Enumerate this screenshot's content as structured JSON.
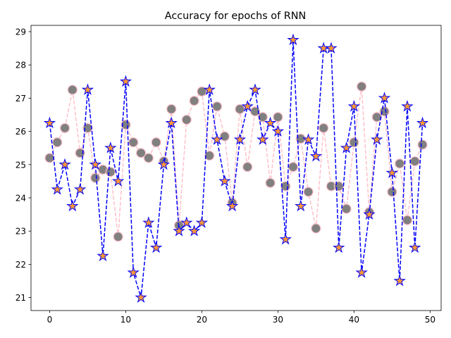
{
  "chart_data": {
    "type": "line",
    "title": "Accuracy for epochs of RNN",
    "xlabel": "",
    "ylabel": "",
    "xlim": [
      -2.45,
      51.45
    ],
    "ylim": [
      20.61,
      29.19
    ],
    "xticks": [
      0,
      10,
      20,
      30,
      40,
      50
    ],
    "yticks": [
      21,
      22,
      23,
      24,
      25,
      26,
      27,
      28,
      29
    ],
    "grid": false,
    "legend": "none",
    "x": [
      0,
      1,
      2,
      3,
      4,
      5,
      6,
      7,
      8,
      9,
      10,
      11,
      12,
      13,
      14,
      15,
      16,
      17,
      18,
      19,
      20,
      21,
      22,
      23,
      24,
      25,
      26,
      27,
      28,
      29,
      30,
      31,
      32,
      33,
      34,
      35,
      36,
      37,
      38,
      39,
      40,
      41,
      42,
      43,
      44,
      45,
      46,
      47,
      48,
      49
    ],
    "series": [
      {
        "style": "dashed",
        "line_color": "#0000ff",
        "marker": "star",
        "marker_face": "#ff9933",
        "marker_edge": "#0000ff",
        "values": [
          26.25,
          24.25,
          25.0,
          23.75,
          24.25,
          27.25,
          25.0,
          22.25,
          25.5,
          24.5,
          27.5,
          21.75,
          21.0,
          23.25,
          22.5,
          25.0,
          26.25,
          23.0,
          23.25,
          23.0,
          23.25,
          27.25,
          25.75,
          24.5,
          23.75,
          25.75,
          26.75,
          27.25,
          25.75,
          26.25,
          26.0,
          22.75,
          28.75,
          23.75,
          25.75,
          25.25,
          28.5,
          28.5,
          22.5,
          25.5,
          26.75,
          21.75,
          23.5,
          25.75,
          27.0,
          24.75,
          21.5,
          26.75,
          22.5,
          26.25
        ]
      },
      {
        "style": "dashed",
        "line_color": "#ffc0cb",
        "marker": "circle",
        "marker_face": "#808080",
        "marker_edge": "#ffc0cb",
        "values": [
          25.2,
          25.67,
          26.1,
          27.25,
          25.35,
          26.1,
          24.6,
          24.85,
          24.78,
          22.83,
          26.2,
          25.67,
          25.35,
          25.2,
          25.67,
          25.1,
          26.67,
          23.17,
          26.35,
          26.92,
          27.2,
          25.27,
          26.75,
          25.85,
          23.85,
          26.67,
          24.93,
          26.6,
          26.43,
          24.45,
          26.43,
          24.35,
          24.93,
          25.78,
          24.18,
          23.08,
          26.1,
          24.35,
          24.35,
          23.67,
          25.67,
          27.35,
          23.57,
          26.43,
          26.6,
          24.18,
          25.03,
          23.33,
          25.1,
          25.6
        ]
      }
    ]
  }
}
